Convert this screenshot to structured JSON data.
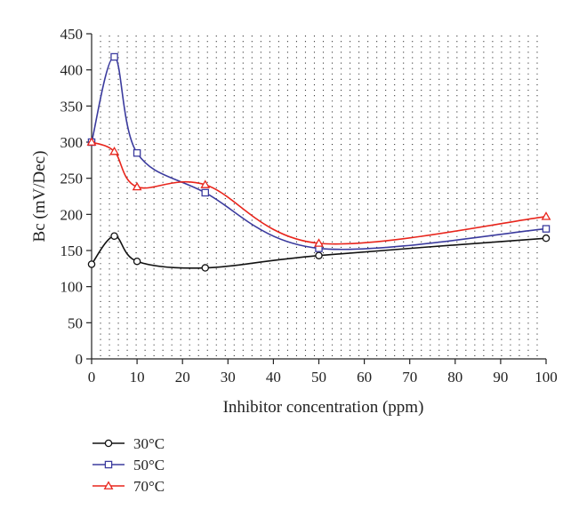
{
  "chart_data": {
    "type": "line",
    "xlabel": "Inhibitor concentration (ppm)",
    "ylabel": "Bc (mV/Dec)",
    "xlim": [
      0,
      100
    ],
    "ylim": [
      0,
      450
    ],
    "x_ticks": [
      0,
      10,
      20,
      30,
      40,
      50,
      60,
      70,
      80,
      90,
      100
    ],
    "y_ticks": [
      0,
      50,
      100,
      150,
      200,
      250,
      300,
      350,
      400,
      450
    ],
    "grid": "dotted",
    "legend_position": "below",
    "x": [
      0,
      5,
      10,
      25,
      50,
      100
    ],
    "series": [
      {
        "name": "30°C",
        "marker": "circle",
        "color": "#111111",
        "values": [
          131,
          170,
          135,
          126,
          143,
          167
        ]
      },
      {
        "name": "50°C",
        "marker": "square",
        "color": "#3b3b9e",
        "values": [
          300,
          418,
          285,
          230,
          153,
          180
        ]
      },
      {
        "name": "70°C",
        "marker": "triangle",
        "color": "#e8251c",
        "values": [
          300,
          287,
          238,
          241,
          160,
          197
        ]
      }
    ]
  }
}
